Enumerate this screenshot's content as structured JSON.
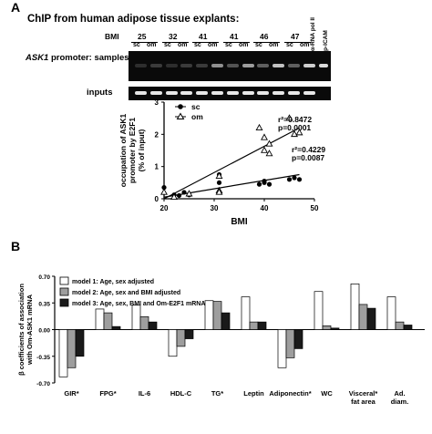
{
  "panel_a": {
    "label": "A",
    "title": "ChIP from human adipose tissue explants:",
    "bmi_label": "BMI",
    "bmi_values": [
      "25",
      "32",
      "41",
      "41",
      "46",
      "47"
    ],
    "lane_labels": [
      "sc",
      "om",
      "sc",
      "om",
      "sc",
      "om",
      "sc",
      "om",
      "sc",
      "om",
      "sc",
      "om"
    ],
    "control_labels": [
      "α-RNA pol II",
      "p-ICAM"
    ],
    "row_samples": "ASK1 promoter: samples",
    "row_samples_italic": "ASK1",
    "row_samples_rest": " promoter: samples",
    "row_inputs": "inputs"
  },
  "chart_data": [
    {
      "type": "scatter",
      "xlabel": "BMI",
      "ylabel_line1": "occupation of ASK1",
      "ylabel_line2": "promoter by E2F1",
      "ylabel_line3": "(% of input)",
      "xlim": [
        20,
        50
      ],
      "ylim": [
        0,
        3
      ],
      "xticks": [
        "20",
        "30",
        "40",
        "50"
      ],
      "yticks": [
        "0",
        "1",
        "2",
        "3"
      ],
      "legend": "top-left",
      "series": [
        {
          "name": "sc",
          "marker": "filled-circle",
          "points": [
            [
              20,
              0.35
            ],
            [
              22,
              0.12
            ],
            [
              23,
              0.1
            ],
            [
              24,
              0.2
            ],
            [
              25,
              0.12
            ],
            [
              31,
              0.5
            ],
            [
              31,
              0.75
            ],
            [
              39,
              0.45
            ],
            [
              40,
              0.5
            ],
            [
              40,
              0.55
            ],
            [
              41,
              0.45
            ],
            [
              45,
              0.6
            ],
            [
              46,
              0.65
            ],
            [
              47,
              0.6
            ]
          ],
          "fit": [
            [
              20,
              0.05
            ],
            [
              47,
              0.75
            ]
          ],
          "stats": [
            "r²=0.4229",
            "p=0.0087"
          ]
        },
        {
          "name": "om",
          "marker": "open-triangle",
          "points": [
            [
              20,
              0.2
            ],
            [
              22,
              0.05
            ],
            [
              25,
              0.15
            ],
            [
              31,
              0.7
            ],
            [
              31,
              0.25
            ],
            [
              31,
              0.2
            ],
            [
              39,
              2.2
            ],
            [
              40,
              1.9
            ],
            [
              40,
              1.5
            ],
            [
              41,
              1.4
            ],
            [
              41,
              1.7
            ],
            [
              45,
              2.5
            ],
            [
              46,
              2.0
            ],
            [
              47,
              2.05
            ]
          ],
          "fit": [
            [
              20,
              0.0
            ],
            [
              47,
              2.2
            ]
          ],
          "stats": [
            "r²=0.8472",
            "p=0.0001"
          ]
        }
      ]
    },
    {
      "type": "bar",
      "ylabel_line1": "β coefficients of association",
      "ylabel_line2": "with Om-ASK1 mRNA",
      "ylim": [
        -0.7,
        0.7
      ],
      "yticks": [
        "0.70",
        "0.35",
        "0.00",
        "-0.35",
        "-0.70"
      ],
      "legend": "top-left",
      "categories": [
        "GIR*",
        "FPG*",
        "IL-6",
        "HDL-C",
        "TG*",
        "Leptin",
        "Adiponectin*",
        "WC",
        "Visceral* fat area",
        "Ad. diam."
      ],
      "category_lines": [
        [
          "GIR*"
        ],
        [
          "FPG*"
        ],
        [
          "IL-6"
        ],
        [
          "HDL-C"
        ],
        [
          "TG*"
        ],
        [
          "Leptin"
        ],
        [
          "Adiponectin*"
        ],
        [
          "WC"
        ],
        [
          "Visceral*",
          "fat area"
        ],
        [
          "Ad.",
          "diam."
        ]
      ],
      "series": [
        {
          "name": "model 1: Age, sex adjusted",
          "color": "#ffffff",
          "values": [
            -0.62,
            0.27,
            0.32,
            -0.35,
            0.38,
            0.43,
            -0.5,
            0.5,
            0.6,
            0.43
          ]
        },
        {
          "name": "model 2: Age, sex and BMI adjusted",
          "color": "#9e9e9e",
          "values": [
            -0.5,
            0.22,
            0.17,
            -0.22,
            0.37,
            0.1,
            -0.37,
            0.05,
            0.33,
            0.1
          ]
        },
        {
          "name": "model 3: Age, sex, BMI and Om-E2F1 mRNA",
          "color": "#1a1a1a",
          "values": [
            -0.35,
            0.04,
            0.1,
            -0.12,
            0.22,
            0.1,
            -0.25,
            0.02,
            0.28,
            0.06
          ]
        }
      ]
    }
  ],
  "panel_b": {
    "label": "B"
  }
}
